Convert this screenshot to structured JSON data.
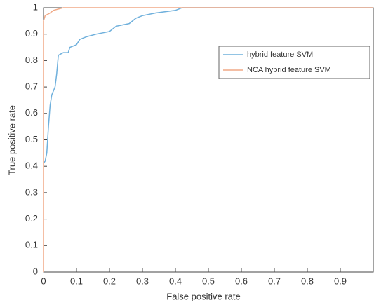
{
  "chart_data": {
    "type": "line",
    "x_label": "False positive rate",
    "y_label": "True positive rate",
    "xlim": [
      0,
      1
    ],
    "ylim": [
      0,
      1
    ],
    "xticks": [
      0,
      0.1,
      0.2,
      0.3,
      0.4,
      0.5,
      0.6,
      0.7,
      0.8,
      0.9
    ],
    "yticks": [
      0,
      0.1,
      0.2,
      0.3,
      0.4,
      0.5,
      0.6,
      0.7,
      0.8,
      0.9,
      1
    ],
    "grid": false,
    "legend": "upper right",
    "series": [
      {
        "name": "hybrid feature SVM",
        "color": "#6fb0dc",
        "x": [
          0,
          0.005,
          0.01,
          0.015,
          0.02,
          0.025,
          0.035,
          0.04,
          0.045,
          0.06,
          0.075,
          0.08,
          0.1,
          0.11,
          0.13,
          0.16,
          0.2,
          0.22,
          0.26,
          0.28,
          0.3,
          0.34,
          0.4,
          0.42,
          0.47,
          1
        ],
        "values": [
          0.41,
          0.42,
          0.45,
          0.55,
          0.63,
          0.67,
          0.7,
          0.75,
          0.82,
          0.83,
          0.83,
          0.85,
          0.86,
          0.88,
          0.89,
          0.9,
          0.91,
          0.93,
          0.94,
          0.96,
          0.97,
          0.98,
          0.99,
          1,
          1,
          1
        ]
      },
      {
        "name": "NCA hybrid feature SVM",
        "color": "#f0a986",
        "x": [
          0,
          0,
          0.005,
          0.02,
          0.03,
          0.06,
          0.13,
          1
        ],
        "values": [
          0,
          0.95,
          0.97,
          0.98,
          0.99,
          1,
          1,
          1
        ]
      }
    ]
  }
}
